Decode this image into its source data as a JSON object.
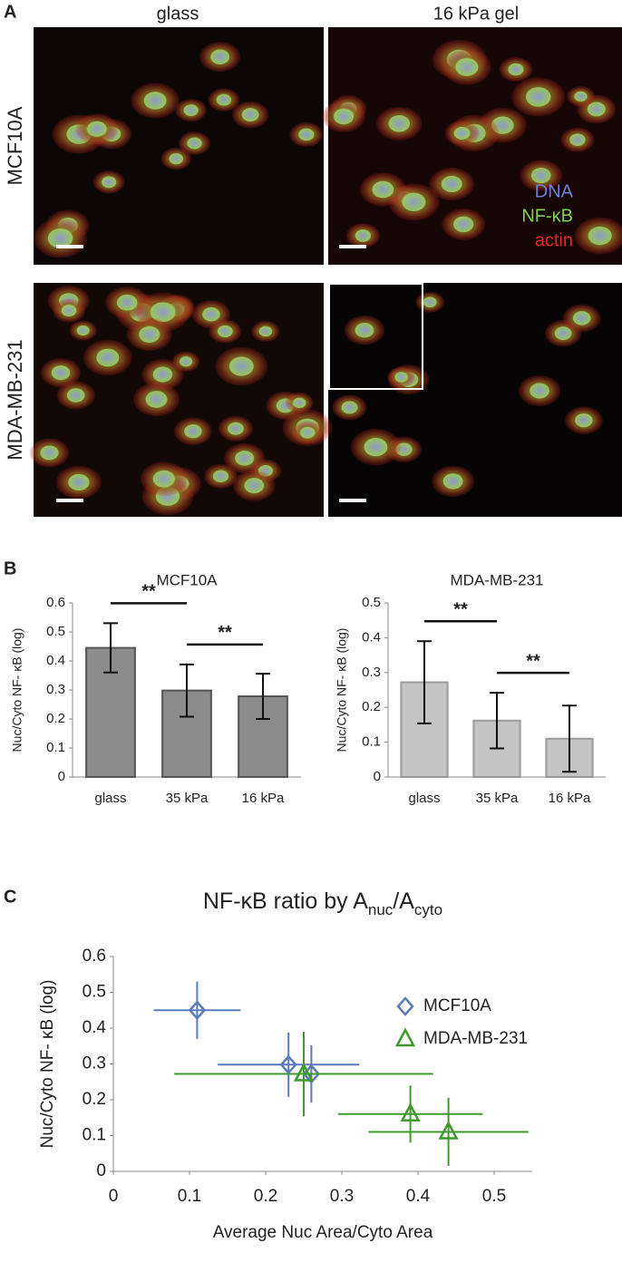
{
  "panel_a": {
    "label": "A",
    "columns": [
      "glass",
      "16 kPa gel"
    ],
    "rows": [
      "MCF10A",
      "MDA-MB-231"
    ],
    "legend": [
      {
        "name": "DNA",
        "color": "#6f80d6"
      },
      {
        "name": "NF-κB",
        "color": "#7fd34e"
      },
      {
        "name": "actin",
        "color": "#e8241c"
      }
    ]
  },
  "panel_b": {
    "label": "B"
  },
  "panel_c": {
    "label": "C"
  },
  "chart_data": [
    {
      "type": "bar",
      "title": "MCF10A",
      "y_label": "Nuc/Cyto NF- κB (log)",
      "categories": [
        "glass",
        "35 kPa",
        "16 kPa"
      ],
      "values": [
        0.445,
        0.298,
        0.278
      ],
      "errors": [
        0.085,
        0.09,
        0.078
      ],
      "color": "#8c8c8c",
      "edge_color": "#555555",
      "ylim": [
        0,
        0.6
      ],
      "yticks": [
        0,
        0.1,
        0.2,
        0.3,
        0.4,
        0.5,
        0.6
      ],
      "significance": [
        {
          "label": "**",
          "between": [
            0,
            1
          ]
        },
        {
          "label": "**",
          "between": [
            1,
            2
          ]
        }
      ]
    },
    {
      "type": "bar",
      "title": "MDA-MB-231",
      "y_label": "Nuc/Cyto NF- κB (log)",
      "categories": [
        "glass",
        "35 kPa",
        "16 kPa"
      ],
      "values": [
        0.272,
        0.162,
        0.11
      ],
      "errors": [
        0.118,
        0.08,
        0.095
      ],
      "color": "#c4c4c4",
      "edge_color": "#9a9a9a",
      "ylim": [
        0,
        0.5
      ],
      "yticks": [
        0,
        0.1,
        0.2,
        0.3,
        0.4,
        0.5
      ],
      "significance": [
        {
          "label": "**",
          "between": [
            0,
            1
          ]
        },
        {
          "label": "**",
          "between": [
            1,
            2
          ]
        }
      ]
    },
    {
      "type": "scatter",
      "title": [
        "NF-κB ratio by A",
        "nuc",
        "/A",
        "cyto"
      ],
      "x_label": "Average Nuc Area/Cyto Area",
      "y_label": "Nuc/Cyto NF- κB (log)",
      "xlim": [
        0,
        0.55
      ],
      "xticks": [
        0,
        0.1,
        0.2,
        0.3,
        0.4,
        0.5
      ],
      "ylim": [
        0,
        0.6
      ],
      "yticks": [
        0,
        0.1,
        0.2,
        0.3,
        0.4,
        0.5,
        0.6
      ],
      "series": [
        {
          "name": "MCF10A",
          "color": "#5b7bb8",
          "marker": "diamond",
          "x": [
            0.11,
            0.23,
            0.26
          ],
          "values": [
            0.45,
            0.298,
            0.272
          ],
          "x_errors": [
            0.057,
            0.093,
            0.115
          ],
          "errors": [
            0.08,
            0.09,
            0.08
          ]
        },
        {
          "name": "MDA-MB-231",
          "color": "#3f9a2c",
          "marker": "triangle",
          "x": [
            0.25,
            0.39,
            0.44
          ],
          "values": [
            0.272,
            0.16,
            0.11
          ],
          "x_errors": [
            0.17,
            0.095,
            0.105
          ],
          "errors": [
            0.118,
            0.08,
            0.095
          ]
        }
      ]
    }
  ]
}
